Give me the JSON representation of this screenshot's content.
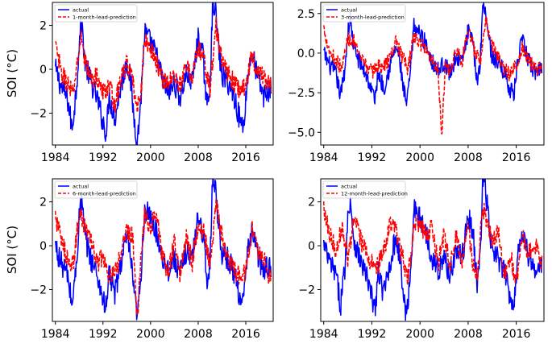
{
  "figure": {
    "ylabel": "SOI (°C)"
  },
  "colors": {
    "actual": "#0000ff",
    "prediction": "#ff0000",
    "axes": "#000000"
  },
  "chart_data": [
    {
      "type": "line",
      "title": "",
      "xlabel": "",
      "ylabel": "SOI (°C)",
      "xlim": [
        1983.5,
        2020.6
      ],
      "ylim": [
        -3.45,
        3.05
      ],
      "xticks": [
        1984,
        1992,
        2000,
        2008,
        2016
      ],
      "xtick_labels": [
        "1984",
        "1992",
        "2000",
        "2008",
        "2016"
      ],
      "yticks": [
        -2,
        0,
        2
      ],
      "ytick_labels": [
        "−2",
        "0",
        "2"
      ],
      "legend": {
        "position": "top-left",
        "entries": [
          "actual",
          "1-month-lead-prediction"
        ]
      },
      "series": [
        {
          "name": "actual",
          "style": "solid",
          "color": "#0000ff",
          "x": [
            1984,
            1985,
            1986,
            1986.8,
            1987.5,
            1988,
            1988.4,
            1989,
            1990,
            1991,
            1992,
            1992.6,
            1993,
            1994,
            1995,
            1996,
            1996.6,
            1997.2,
            1997.8,
            1998.4,
            1999,
            2000,
            2001,
            2002,
            2003,
            2004,
            2005,
            2006,
            2007,
            2008,
            2008.8,
            2009.5,
            2010,
            2010.4,
            2010.8,
            2011.5,
            2012,
            2013,
            2014,
            2015,
            2015.6,
            2016.3,
            2017,
            2018,
            2019,
            2020
          ],
          "values": [
            0,
            -0.8,
            -1.3,
            -2.7,
            -1.0,
            1.2,
            2.2,
            0.3,
            -0.6,
            -1.3,
            -2.4,
            -2.9,
            -1.2,
            -2.2,
            -0.8,
            0.4,
            -0.4,
            -2.2,
            -3.3,
            -1.2,
            1.7,
            1.2,
            0.6,
            -0.5,
            -1.1,
            -0.6,
            -1.3,
            -0.2,
            -0.6,
            1.4,
            0.6,
            -1.8,
            -0.6,
            2.9,
            3.0,
            0.8,
            -0.3,
            -0.6,
            -1.2,
            -2.3,
            -2.6,
            -0.4,
            0.8,
            -0.4,
            -1.2,
            -0.9
          ]
        },
        {
          "name": "1-month-lead-prediction",
          "style": "dashed",
          "color": "#ff0000",
          "x": [
            1984,
            1985,
            1986,
            1987,
            1987.6,
            1988.4,
            1989,
            1990,
            1991,
            1992,
            1993,
            1994,
            1995,
            1996,
            1997,
            1997.8,
            1998.5,
            1999,
            2000,
            2001,
            2002,
            2003,
            2004,
            2005,
            2006,
            2007,
            2008,
            2009,
            2010,
            2011,
            2012,
            2013,
            2014,
            2015,
            2016,
            2017,
            2018,
            2019,
            2020
          ],
          "values": [
            1.1,
            -0.2,
            -0.6,
            -1.2,
            0.2,
            1.5,
            0.4,
            -0.5,
            -0.3,
            -1.1,
            -0.7,
            -1.6,
            -0.5,
            0.3,
            -0.6,
            -2.0,
            -0.6,
            1.3,
            1.0,
            0.3,
            -0.4,
            -0.6,
            -0.3,
            -0.7,
            0.1,
            -0.3,
            1.0,
            0.4,
            -0.9,
            2.0,
            0.3,
            -0.2,
            -0.6,
            -1.0,
            -0.7,
            0.6,
            0.0,
            -0.4,
            -0.7
          ]
        }
      ]
    },
    {
      "type": "line",
      "title": "",
      "xlabel": "",
      "ylabel": "",
      "xlim": [
        1983.5,
        2020.6
      ],
      "ylim": [
        -5.8,
        3.2
      ],
      "xticks": [
        1984,
        1992,
        2000,
        2008,
        2016
      ],
      "xtick_labels": [
        "1984",
        "1992",
        "2000",
        "2008",
        "2016"
      ],
      "yticks": [
        -5.0,
        -2.5,
        0.0,
        2.5
      ],
      "ytick_labels": [
        "−5.0",
        "−2.5",
        "0.0",
        "2.5"
      ],
      "legend": {
        "position": "top-left",
        "entries": [
          "actual",
          "3-month-lead-prediction"
        ]
      },
      "series": [
        {
          "name": "actual",
          "style": "solid",
          "color": "#0000ff",
          "x": [
            1984,
            1985,
            1986,
            1986.8,
            1987.5,
            1988,
            1988.4,
            1989,
            1990,
            1991,
            1992,
            1992.6,
            1993,
            1994,
            1995,
            1996,
            1996.6,
            1997.2,
            1997.8,
            1998.4,
            1999,
            2000,
            2001,
            2002,
            2003,
            2004,
            2005,
            2006,
            2007,
            2008,
            2008.8,
            2009.5,
            2010,
            2010.4,
            2010.8,
            2011.5,
            2012,
            2013,
            2014,
            2015,
            2015.6,
            2016.3,
            2017,
            2018,
            2019,
            2020
          ],
          "values": [
            0,
            -0.8,
            -1.3,
            -2.7,
            -1.0,
            1.2,
            2.2,
            0.3,
            -0.6,
            -1.3,
            -2.4,
            -2.9,
            -1.2,
            -2.2,
            -0.8,
            0.4,
            -0.4,
            -2.2,
            -3.3,
            -1.2,
            1.7,
            1.2,
            0.6,
            -0.5,
            -1.1,
            -0.6,
            -1.3,
            -0.2,
            -0.6,
            1.4,
            0.6,
            -1.8,
            -0.6,
            2.9,
            3.0,
            0.8,
            -0.3,
            -0.6,
            -1.2,
            -2.3,
            -2.6,
            -0.4,
            0.8,
            -0.4,
            -1.2,
            -0.9
          ]
        },
        {
          "name": "3-month-lead-prediction",
          "style": "dashed",
          "color": "#ff0000",
          "x": [
            1984,
            1985,
            1986,
            1987,
            1988,
            1989,
            1990,
            1991,
            1992,
            1993,
            1994,
            1995,
            1996,
            1997,
            1998,
            1999,
            2000,
            2001,
            2002,
            2003,
            2003.6,
            2004.2,
            2005,
            2006,
            2007,
            2008,
            2009,
            2010,
            2011,
            2012,
            2013,
            2014,
            2015,
            2016,
            2017,
            2018,
            2019,
            2020
          ],
          "values": [
            1.6,
            0.1,
            -0.4,
            -1.0,
            0.9,
            0.8,
            -0.4,
            -0.7,
            -1.2,
            -0.8,
            -0.9,
            -0.3,
            0.8,
            -0.2,
            -1.0,
            1.1,
            0.6,
            0.3,
            -0.5,
            -0.9,
            -5.4,
            -0.6,
            -1.2,
            0.2,
            -0.5,
            1.6,
            0.2,
            -0.6,
            2.0,
            0.5,
            -0.3,
            -1.0,
            -1.4,
            -0.7,
            0.3,
            -0.4,
            -0.9,
            -1.1
          ]
        }
      ]
    },
    {
      "type": "line",
      "title": "",
      "xlabel": "",
      "ylabel": "SOI (°C)",
      "xlim": [
        1983.5,
        2020.6
      ],
      "ylim": [
        -3.45,
        3.05
      ],
      "xticks": [
        1984,
        1992,
        2000,
        2008,
        2016
      ],
      "xtick_labels": [
        "1984",
        "1992",
        "2000",
        "2008",
        "2016"
      ],
      "yticks": [
        -2,
        0,
        2
      ],
      "ytick_labels": [
        "−2",
        "0",
        "2"
      ],
      "legend": {
        "position": "top-left",
        "entries": [
          "actual",
          "6-month-lead-prediction"
        ]
      },
      "series": [
        {
          "name": "actual",
          "style": "solid",
          "color": "#0000ff",
          "x": [
            1984,
            1985,
            1986,
            1986.8,
            1987.5,
            1988,
            1988.4,
            1989,
            1990,
            1991,
            1992,
            1992.6,
            1993,
            1994,
            1995,
            1996,
            1996.6,
            1997.2,
            1997.8,
            1998.4,
            1999,
            2000,
            2001,
            2002,
            2003,
            2004,
            2005,
            2006,
            2007,
            2008,
            2008.8,
            2009.5,
            2010,
            2010.4,
            2010.8,
            2011.5,
            2012,
            2013,
            2014,
            2015,
            2015.6,
            2016.3,
            2017,
            2018,
            2019,
            2020
          ],
          "values": [
            0,
            -0.8,
            -1.3,
            -2.7,
            -1.0,
            1.2,
            2.2,
            0.3,
            -0.6,
            -1.3,
            -2.4,
            -2.9,
            -1.2,
            -2.2,
            -0.8,
            0.4,
            -0.4,
            -2.2,
            -3.3,
            -1.2,
            1.7,
            1.2,
            0.6,
            -0.5,
            -1.1,
            -0.6,
            -1.3,
            -0.2,
            -0.6,
            1.4,
            0.6,
            -1.8,
            -0.6,
            2.9,
            3.0,
            0.8,
            -0.3,
            -0.6,
            -1.2,
            -2.3,
            -2.6,
            -0.4,
            0.8,
            -0.4,
            -1.2,
            -0.9
          ]
        },
        {
          "name": "6-month-lead-prediction",
          "style": "dashed",
          "color": "#ff0000",
          "x": [
            1984,
            1985,
            1986,
            1987,
            1988,
            1989,
            1990,
            1991,
            1992,
            1993,
            1994,
            1995,
            1996,
            1997,
            1997.8,
            1998.3,
            1999,
            2000,
            2001,
            2002,
            2003,
            2004,
            2005,
            2006,
            2007,
            2008,
            2009,
            2010,
            2011,
            2012,
            2013,
            2014,
            2015,
            2016,
            2017,
            2018,
            2019,
            2020
          ],
          "values": [
            1.4,
            0.2,
            -0.5,
            -0.9,
            1.5,
            0.9,
            0.2,
            -0.8,
            -0.5,
            -1.5,
            -1.3,
            -0.4,
            0.7,
            0.4,
            -3.3,
            -0.8,
            1.4,
            0.8,
            1.6,
            -0.6,
            -1.2,
            0.2,
            -1.4,
            0.6,
            -0.8,
            1.0,
            0.6,
            -1.0,
            1.9,
            0.4,
            -0.5,
            -1.1,
            -1.4,
            -1.2,
            0.8,
            -0.2,
            -0.6,
            -1.5
          ]
        }
      ]
    },
    {
      "type": "line",
      "title": "",
      "xlabel": "",
      "ylabel": "",
      "xlim": [
        1983.5,
        2020.6
      ],
      "ylim": [
        -3.45,
        3.05
      ],
      "xticks": [
        1984,
        1992,
        2000,
        2008,
        2016
      ],
      "xtick_labels": [
        "1984",
        "1992",
        "2000",
        "2008",
        "2016"
      ],
      "yticks": [
        -2,
        0,
        2
      ],
      "ytick_labels": [
        "−2",
        "0",
        "2"
      ],
      "legend": {
        "position": "top-left",
        "entries": [
          "actual",
          "12-month-lead-prediction"
        ]
      },
      "series": [
        {
          "name": "actual",
          "style": "solid",
          "color": "#0000ff",
          "x": [
            1984,
            1985,
            1986,
            1986.8,
            1987.5,
            1988,
            1988.4,
            1989,
            1990,
            1991,
            1992,
            1992.6,
            1993,
            1994,
            1995,
            1996,
            1996.6,
            1997.2,
            1997.8,
            1998.4,
            1999,
            2000,
            2001,
            2002,
            2003,
            2004,
            2005,
            2006,
            2007,
            2008,
            2008.8,
            2009.5,
            2010,
            2010.4,
            2010.8,
            2011.5,
            2012,
            2013,
            2014,
            2015,
            2015.6,
            2016.3,
            2017,
            2018,
            2019,
            2020
          ],
          "values": [
            0,
            -0.8,
            -1.3,
            -2.7,
            -1.0,
            1.2,
            2.2,
            0.3,
            -0.6,
            -1.3,
            -2.4,
            -2.9,
            -1.2,
            -2.2,
            -0.8,
            0.4,
            -0.4,
            -2.2,
            -3.3,
            -1.2,
            1.7,
            1.2,
            0.6,
            -0.5,
            -1.1,
            -0.6,
            -1.3,
            -0.2,
            -0.6,
            1.4,
            0.6,
            -1.8,
            -0.6,
            2.9,
            3.0,
            0.8,
            -0.3,
            -0.6,
            -1.2,
            -2.3,
            -2.6,
            -0.4,
            0.8,
            -0.4,
            -1.2,
            -0.9
          ]
        },
        {
          "name": "12-month-lead-prediction",
          "style": "dashed",
          "color": "#ff0000",
          "x": [
            1984,
            1985,
            1986,
            1987,
            1988,
            1989,
            1990,
            1991,
            1992,
            1993,
            1994,
            1995,
            1996,
            1997,
            1998,
            1999,
            2000,
            2001,
            2002,
            2003,
            2004,
            2005,
            2006,
            2007,
            2008,
            2009,
            2009.6,
            2010.3,
            2011,
            2012,
            2013,
            2014,
            2015,
            2016,
            2017,
            2018,
            2019,
            2020
          ],
          "values": [
            1.8,
            0.6,
            -0.2,
            0.9,
            -0.6,
            1.2,
            0.4,
            -0.3,
            -0.8,
            -1.0,
            -0.2,
            1.0,
            0.6,
            -0.4,
            -1.5,
            0.8,
            1.1,
            0.3,
            0.9,
            -0.8,
            0.5,
            -1.0,
            0.4,
            -0.6,
            0.8,
            -1.2,
            -1.5,
            1.8,
            1.2,
            0.1,
            0.6,
            -1.4,
            -0.4,
            -1.8,
            0.4,
            -0.3,
            0.1,
            -0.6
          ]
        }
      ]
    }
  ]
}
